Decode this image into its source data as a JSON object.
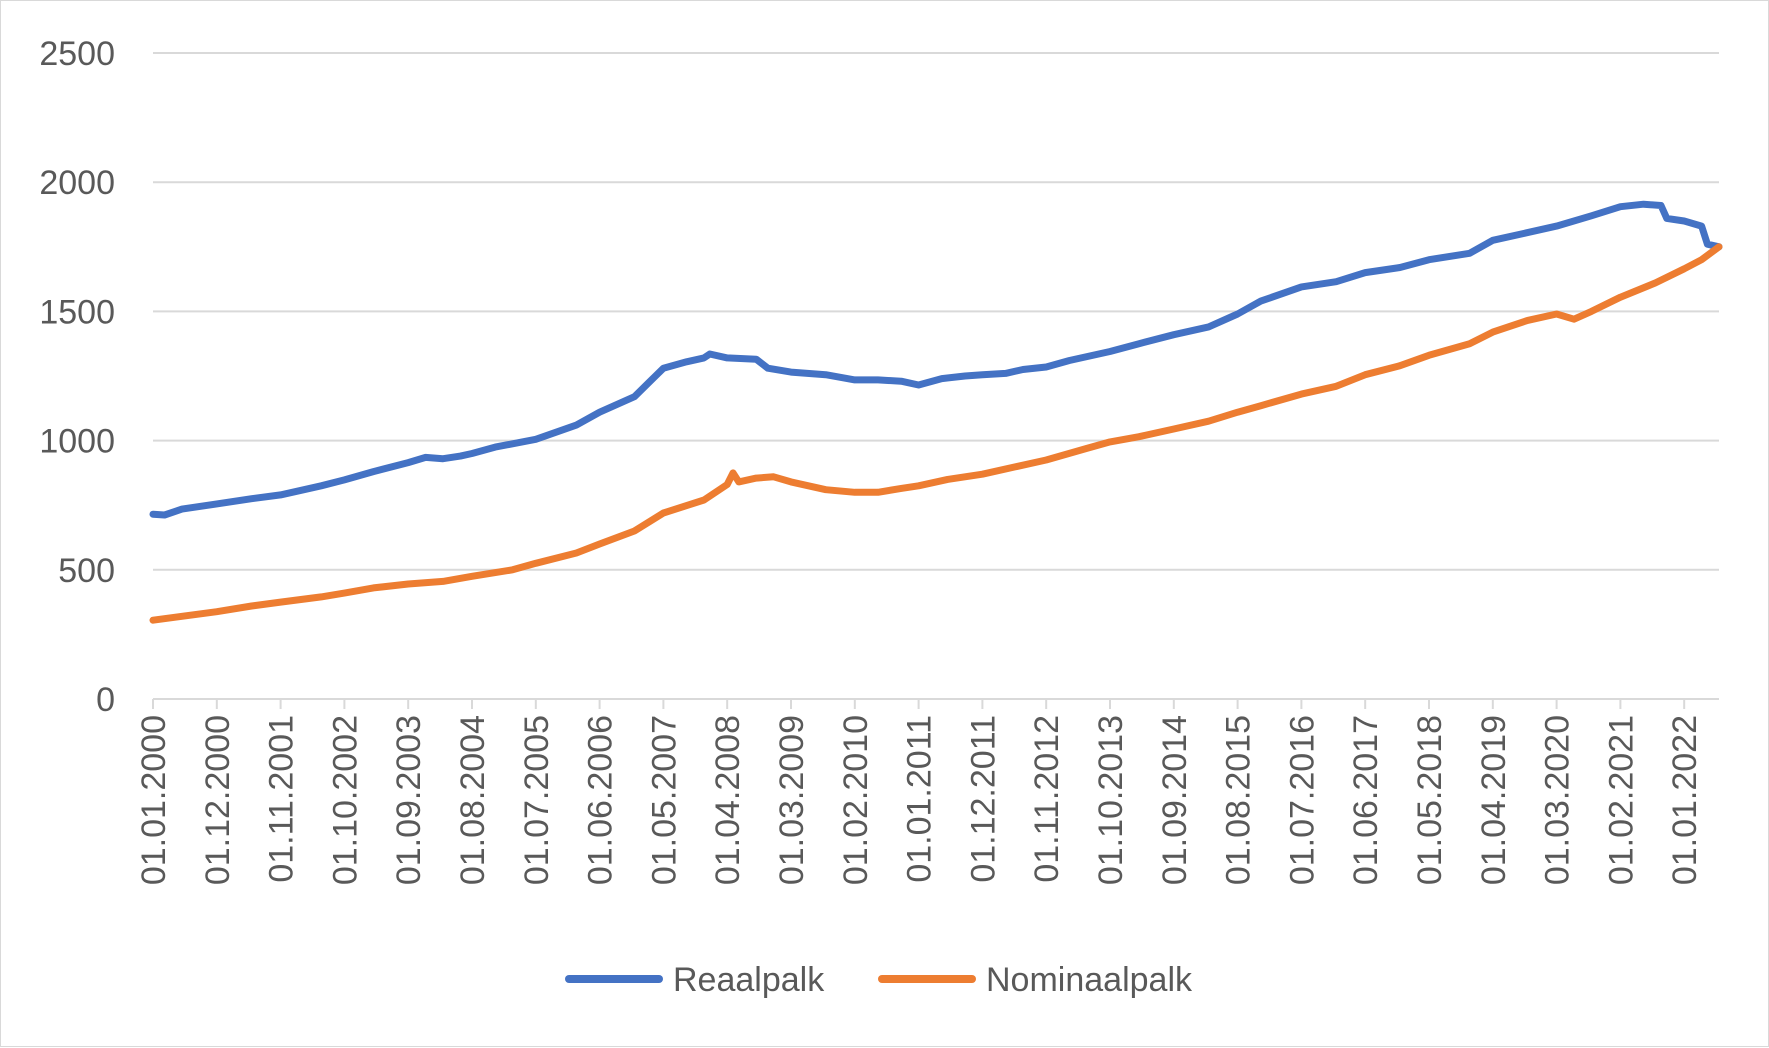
{
  "chart_data": {
    "type": "line",
    "title": "",
    "xlabel": "",
    "ylabel": "",
    "ylim": [
      0,
      2500
    ],
    "y_ticks": [
      0,
      500,
      1000,
      1500,
      2000,
      2500
    ],
    "y_tick_labels": [
      "0",
      "500",
      "1000",
      "1500",
      "2000",
      "2500"
    ],
    "x_range": [
      "2000-01",
      "2022-07"
    ],
    "x_tick_labels": [
      "01.01.2000",
      "01.12.2000",
      "01.11.2001",
      "01.10.2002",
      "01.09.2003",
      "01.08.2004",
      "01.07.2005",
      "01.06.2006",
      "01.05.2007",
      "01.04.2008",
      "01.03.2009",
      "01.02.2010",
      "01.01.2011",
      "01.12.2011",
      "01.11.2012",
      "01.10.2013",
      "01.09.2014",
      "01.08.2015",
      "01.07.2016",
      "01.06.2017",
      "01.05.2018",
      "01.04.2019",
      "01.03.2020",
      "01.02.2021",
      "01.01.2022"
    ],
    "grid": true,
    "legend_position": "bottom",
    "series": [
      {
        "name": "Reaalpalk",
        "color": "#4472C4",
        "points": [
          [
            "2000-01",
            715
          ],
          [
            "2000-03",
            712
          ],
          [
            "2000-06",
            735
          ],
          [
            "2000-12",
            755
          ],
          [
            "2001-06",
            775
          ],
          [
            "2001-11",
            790
          ],
          [
            "2002-06",
            825
          ],
          [
            "2002-10",
            848
          ],
          [
            "2003-03",
            880
          ],
          [
            "2003-09",
            915
          ],
          [
            "2003-12",
            935
          ],
          [
            "2004-03",
            930
          ],
          [
            "2004-06",
            940
          ],
          [
            "2004-08",
            950
          ],
          [
            "2004-12",
            975
          ],
          [
            "2005-07",
            1005
          ],
          [
            "2006-02",
            1060
          ],
          [
            "2006-06",
            1110
          ],
          [
            "2006-12",
            1170
          ],
          [
            "2007-05",
            1280
          ],
          [
            "2007-09",
            1305
          ],
          [
            "2007-12",
            1320
          ],
          [
            "2008-01",
            1335
          ],
          [
            "2008-04",
            1320
          ],
          [
            "2008-09",
            1315
          ],
          [
            "2008-11",
            1280
          ],
          [
            "2009-03",
            1265
          ],
          [
            "2009-09",
            1255
          ],
          [
            "2010-02",
            1235
          ],
          [
            "2010-06",
            1235
          ],
          [
            "2010-10",
            1230
          ],
          [
            "2011-01",
            1215
          ],
          [
            "2011-05",
            1240
          ],
          [
            "2011-09",
            1250
          ],
          [
            "2011-12",
            1255
          ],
          [
            "2012-04",
            1260
          ],
          [
            "2012-07",
            1275
          ],
          [
            "2012-11",
            1285
          ],
          [
            "2013-03",
            1310
          ],
          [
            "2013-10",
            1345
          ],
          [
            "2014-03",
            1375
          ],
          [
            "2014-09",
            1410
          ],
          [
            "2015-03",
            1440
          ],
          [
            "2015-08",
            1490
          ],
          [
            "2015-12",
            1540
          ],
          [
            "2016-07",
            1595
          ],
          [
            "2017-01",
            1615
          ],
          [
            "2017-06",
            1650
          ],
          [
            "2017-12",
            1670
          ],
          [
            "2018-05",
            1700
          ],
          [
            "2018-12",
            1725
          ],
          [
            "2019-04",
            1775
          ],
          [
            "2019-10",
            1805
          ],
          [
            "2020-03",
            1830
          ],
          [
            "2020-09",
            1870
          ],
          [
            "2021-02",
            1905
          ],
          [
            "2021-06",
            1915
          ],
          [
            "2021-09",
            1910
          ],
          [
            "2021-10",
            1860
          ],
          [
            "2022-01",
            1850
          ],
          [
            "2022-04",
            1830
          ],
          [
            "2022-05",
            1760
          ],
          [
            "2022-07",
            1750
          ]
        ]
      },
      {
        "name": "Nominaalpalk",
        "color": "#ED7D31",
        "points": [
          [
            "2000-01",
            305
          ],
          [
            "2000-06",
            320
          ],
          [
            "2000-12",
            338
          ],
          [
            "2001-06",
            360
          ],
          [
            "2001-11",
            375
          ],
          [
            "2002-06",
            395
          ],
          [
            "2002-10",
            410
          ],
          [
            "2003-03",
            430
          ],
          [
            "2003-09",
            445
          ],
          [
            "2004-03",
            455
          ],
          [
            "2004-08",
            475
          ],
          [
            "2005-03",
            500
          ],
          [
            "2005-07",
            525
          ],
          [
            "2006-02",
            565
          ],
          [
            "2006-06",
            600
          ],
          [
            "2006-12",
            650
          ],
          [
            "2007-05",
            720
          ],
          [
            "2007-12",
            770
          ],
          [
            "2008-04",
            830
          ],
          [
            "2008-05",
            875
          ],
          [
            "2008-06",
            840
          ],
          [
            "2008-09",
            855
          ],
          [
            "2008-12",
            860
          ],
          [
            "2009-03",
            840
          ],
          [
            "2009-09",
            810
          ],
          [
            "2010-02",
            800
          ],
          [
            "2010-06",
            800
          ],
          [
            "2010-10",
            815
          ],
          [
            "2011-01",
            825
          ],
          [
            "2011-06",
            850
          ],
          [
            "2011-12",
            870
          ],
          [
            "2012-06",
            900
          ],
          [
            "2012-11",
            925
          ],
          [
            "2013-06",
            970
          ],
          [
            "2013-10",
            995
          ],
          [
            "2014-03",
            1015
          ],
          [
            "2014-09",
            1045
          ],
          [
            "2015-03",
            1075
          ],
          [
            "2015-08",
            1110
          ],
          [
            "2015-12",
            1135
          ],
          [
            "2016-07",
            1180
          ],
          [
            "2017-01",
            1210
          ],
          [
            "2017-06",
            1255
          ],
          [
            "2017-12",
            1290
          ],
          [
            "2018-05",
            1330
          ],
          [
            "2018-12",
            1375
          ],
          [
            "2019-04",
            1420
          ],
          [
            "2019-10",
            1465
          ],
          [
            "2020-03",
            1490
          ],
          [
            "2020-06",
            1470
          ],
          [
            "2020-09",
            1500
          ],
          [
            "2021-02",
            1555
          ],
          [
            "2021-08",
            1610
          ],
          [
            "2022-01",
            1665
          ],
          [
            "2022-04",
            1700
          ],
          [
            "2022-07",
            1750
          ]
        ]
      }
    ]
  }
}
